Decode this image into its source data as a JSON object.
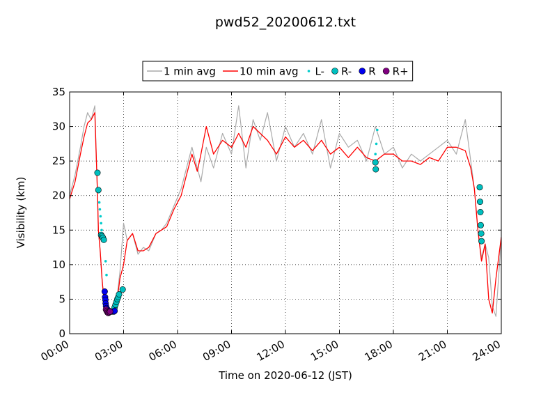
{
  "chart_data": {
    "type": "line",
    "title": "pwd52_20200612.txt",
    "xlabel": "Time on 2020-06-12 (JST)",
    "ylabel": "Visibility (km)",
    "xlim": [
      0,
      24
    ],
    "ylim": [
      0,
      35
    ],
    "x_ticks": [
      0,
      3,
      6,
      9,
      12,
      15,
      18,
      21,
      24
    ],
    "x_tick_labels": [
      "00:00",
      "03:00",
      "06:00",
      "09:00",
      "12:00",
      "15:00",
      "18:00",
      "21:00",
      "24:00"
    ],
    "y_ticks": [
      0,
      5,
      10,
      15,
      20,
      25,
      30,
      35
    ],
    "y_tick_labels": [
      "0",
      "5",
      "10",
      "15",
      "20",
      "25",
      "30",
      "35"
    ],
    "grid": true,
    "legend_position": "top-center",
    "series": [
      {
        "name": "1 min avg",
        "kind": "line",
        "color": "#aaaaaa",
        "x": [
          0.0,
          0.3,
          0.6,
          0.8,
          1.0,
          1.2,
          1.4,
          1.5,
          1.55,
          1.6,
          1.7,
          1.8,
          1.9,
          2.0,
          2.2,
          2.4,
          2.6,
          2.8,
          3.0,
          3.2,
          3.5,
          3.8,
          4.1,
          4.4,
          4.8,
          5.1,
          5.4,
          5.8,
          6.2,
          6.5,
          6.8,
          7.1,
          7.3,
          7.6,
          8.0,
          8.5,
          9.0,
          9.4,
          9.8,
          10.2,
          10.6,
          11.0,
          11.5,
          12.0,
          12.5,
          13.0,
          13.5,
          14.0,
          14.5,
          15.0,
          15.5,
          16.0,
          16.5,
          17.0,
          17.5,
          18.0,
          18.5,
          19.0,
          19.5,
          20.0,
          20.5,
          21.0,
          21.5,
          22.0,
          22.3,
          22.5,
          22.7,
          22.9,
          23.1,
          23.3,
          23.5,
          23.7,
          24.0
        ],
        "y": [
          20,
          23,
          27,
          30,
          32,
          31,
          33,
          24,
          20,
          15,
          12,
          8,
          5,
          4,
          3.5,
          3.4,
          4.5,
          9,
          16,
          13.5,
          14.5,
          11.5,
          12.5,
          12,
          14.5,
          15,
          16,
          18.5,
          21,
          24,
          27,
          24,
          22,
          27,
          24,
          29,
          26,
          33,
          24,
          31,
          28,
          32,
          25,
          30,
          27,
          29,
          26,
          31,
          24,
          29,
          27,
          28,
          25,
          30,
          26,
          27,
          24,
          26,
          25,
          26,
          27,
          28,
          26,
          31,
          25,
          21,
          15,
          11,
          13,
          11,
          4,
          2.5,
          14
        ]
      },
      {
        "name": "10 min avg",
        "kind": "line",
        "color": "#ff0000",
        "x": [
          0.0,
          0.3,
          0.6,
          0.8,
          1.0,
          1.2,
          1.4,
          1.5,
          1.55,
          1.6,
          1.7,
          1.8,
          1.9,
          2.0,
          2.2,
          2.4,
          2.6,
          2.8,
          3.0,
          3.2,
          3.5,
          3.8,
          4.1,
          4.4,
          4.8,
          5.1,
          5.4,
          5.8,
          6.2,
          6.5,
          6.8,
          7.1,
          7.3,
          7.6,
          8.0,
          8.5,
          9.0,
          9.4,
          9.8,
          10.2,
          10.6,
          11.0,
          11.5,
          12.0,
          12.5,
          13.0,
          13.5,
          14.0,
          14.5,
          15.0,
          15.5,
          16.0,
          16.5,
          17.0,
          17.5,
          18.0,
          18.5,
          19.0,
          19.5,
          20.0,
          20.5,
          21.0,
          21.5,
          22.0,
          22.3,
          22.5,
          22.7,
          22.9,
          23.1,
          23.3,
          23.5,
          23.7,
          24.0
        ],
        "y": [
          19.5,
          22,
          26,
          28.5,
          30.5,
          31,
          32,
          24,
          20.5,
          15,
          12,
          8,
          5,
          4,
          3.3,
          3.3,
          4,
          8,
          10,
          13.5,
          14.5,
          12,
          12,
          12.5,
          14.5,
          15,
          15.5,
          18,
          20,
          23,
          26,
          23.5,
          26,
          30,
          26,
          28,
          27,
          29,
          27,
          30,
          29,
          28,
          26,
          28.5,
          27,
          28,
          26.5,
          28,
          26,
          27,
          25.5,
          27,
          25.5,
          25,
          26,
          26,
          25,
          25,
          24.5,
          25.5,
          25,
          27,
          27,
          26.5,
          24,
          21,
          15,
          10.5,
          13,
          5,
          3,
          8,
          14
        ]
      },
      {
        "name": "L-",
        "kind": "marker",
        "color": "#00cccc",
        "x": [
          1.62,
          1.65,
          1.68,
          1.72,
          1.75,
          1.78,
          1.82,
          1.85,
          1.9,
          1.95,
          2.0,
          2.05,
          17.0,
          17.05,
          17.1
        ],
        "y": [
          20.5,
          19,
          18,
          17,
          16,
          15,
          14.5,
          14,
          13.8,
          13.5,
          10.5,
          8.5,
          26,
          27.5,
          29.5
        ]
      },
      {
        "name": "R-",
        "kind": "marker",
        "color": "#00bfbf",
        "x": [
          1.55,
          1.6,
          1.75,
          1.8,
          1.85,
          1.9,
          2.5,
          2.55,
          2.6,
          2.65,
          2.7,
          2.75,
          2.95,
          17.0,
          17.02,
          22.8,
          22.82,
          22.84,
          22.86,
          22.88,
          22.9
        ],
        "y": [
          23.3,
          20.8,
          14.3,
          14.1,
          13.9,
          13.6,
          3.8,
          4.2,
          4.6,
          5.0,
          5.3,
          5.7,
          6.4,
          24.8,
          23.8,
          21.2,
          19.1,
          17.6,
          15.7,
          14.5,
          13.4
        ]
      },
      {
        "name": "R",
        "kind": "marker",
        "color": "#0000ee",
        "x": [
          1.95,
          1.97,
          1.99,
          2.0,
          2.02,
          2.05,
          2.1,
          2.2,
          2.35,
          2.45,
          2.5
        ],
        "y": [
          6.1,
          5.3,
          4.9,
          4.4,
          4.0,
          3.7,
          3.5,
          3.3,
          3.2,
          3.2,
          3.3
        ]
      },
      {
        "name": "R+",
        "kind": "marker",
        "color": "#800080",
        "x": [
          2.02,
          2.06,
          2.1,
          2.15,
          2.2,
          2.25
        ],
        "y": [
          3.5,
          3.3,
          3.1,
          3.0,
          3.1,
          3.2
        ]
      }
    ]
  }
}
